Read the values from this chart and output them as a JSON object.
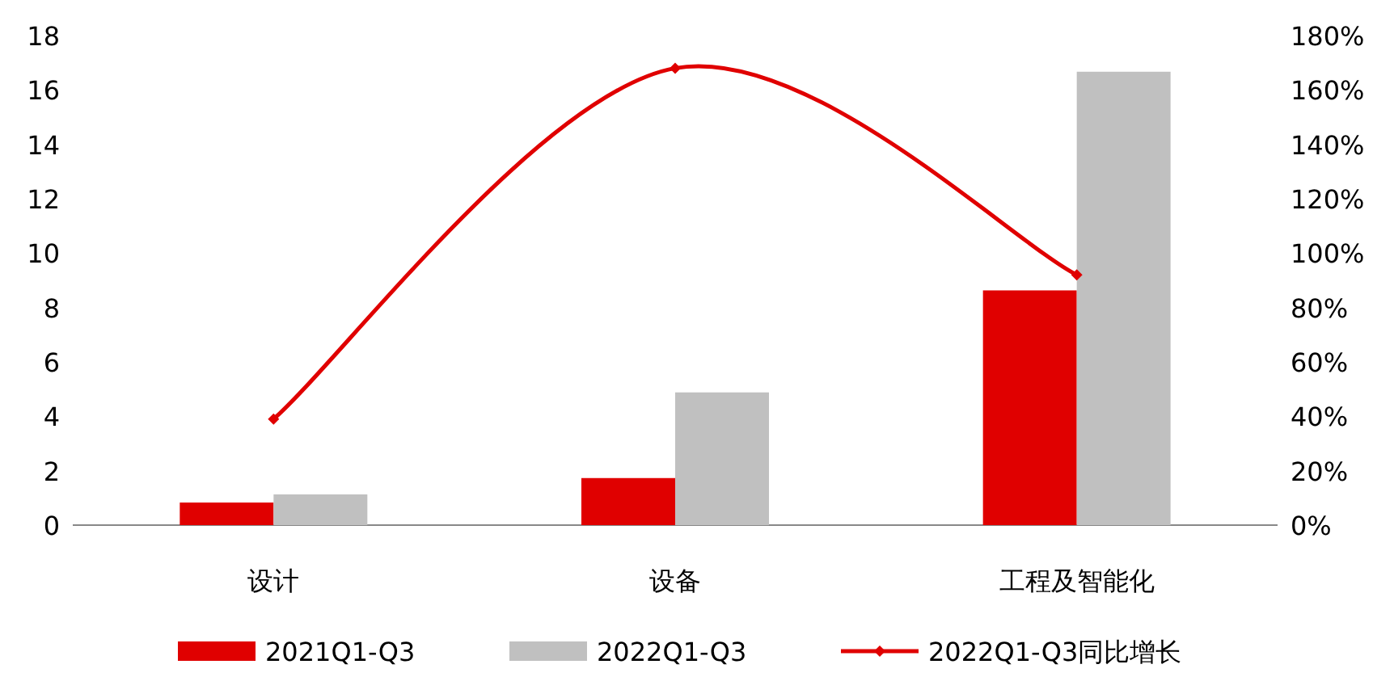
{
  "chart_data": {
    "type": "bar",
    "categories": [
      "设计",
      "设备",
      "工程及智能化"
    ],
    "series": [
      {
        "name": "2021Q1-Q3",
        "color": "#e00000",
        "values": [
          0.83,
          1.73,
          8.63
        ]
      },
      {
        "name": "2022Q1-Q3",
        "color": "#c0c0c0",
        "values": [
          1.13,
          4.88,
          16.67
        ]
      },
      {
        "name": "2022Q1-Q3同比增长",
        "color": "#e00000",
        "type": "line",
        "axis": "y2",
        "marker": "diamond",
        "values": [
          39,
          168,
          92
        ]
      }
    ],
    "ylim": [
      0,
      18
    ],
    "yticks": [
      0,
      2,
      4,
      6,
      8,
      10,
      12,
      14,
      16,
      18
    ],
    "y2lim": [
      0,
      180
    ],
    "y2ticks": [
      {
        "value": 0,
        "label": "0%"
      },
      {
        "value": 20,
        "label": "20%"
      },
      {
        "value": 40,
        "label": "40%"
      },
      {
        "value": 60,
        "label": "60%"
      },
      {
        "value": 80,
        "label": "80%"
      },
      {
        "value": 100,
        "label": "100%"
      },
      {
        "value": 120,
        "label": "120%"
      },
      {
        "value": 140,
        "label": "140%"
      },
      {
        "value": 160,
        "label": "160%"
      },
      {
        "value": 180,
        "label": "180%"
      }
    ],
    "legend": "bottom"
  }
}
